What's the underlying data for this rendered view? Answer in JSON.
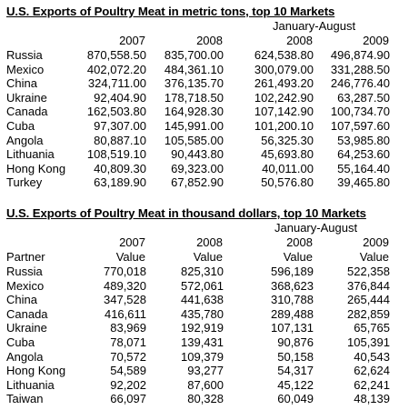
{
  "table1": {
    "title": "U.S. Exports of Poultry Meat in metric tons, top 10 Markets",
    "period_label": "January-August",
    "years": [
      "2007",
      "2008",
      "2008",
      "2009"
    ],
    "rows": [
      {
        "country": "Russia",
        "v": [
          "870,558.50",
          "835,700.00",
          "624,538.80",
          "496,874.90"
        ]
      },
      {
        "country": "Mexico",
        "v": [
          "402,072.20",
          "484,361.10",
          "300,079.00",
          "331,288.50"
        ]
      },
      {
        "country": "China",
        "v": [
          "324,711.00",
          "376,135.70",
          "261,493.20",
          "246,776.40"
        ]
      },
      {
        "country": "Ukraine",
        "v": [
          "92,404.90",
          "178,718.50",
          "102,242.90",
          "63,287.50"
        ]
      },
      {
        "country": "Canada",
        "v": [
          "162,503.80",
          "164,928.30",
          "107,142.90",
          "100,734.70"
        ]
      },
      {
        "country": "Cuba",
        "v": [
          "97,307.00",
          "145,991.00",
          "101,200.10",
          "107,597.60"
        ]
      },
      {
        "country": "Angola",
        "v": [
          "80,887.10",
          "105,585.00",
          "56,325.30",
          "53,985.80"
        ]
      },
      {
        "country": "Lithuania",
        "v": [
          "108,519.10",
          "90,443.80",
          "45,693.80",
          "64,253.60"
        ]
      },
      {
        "country": "Hong Kong",
        "v": [
          "40,809.30",
          "69,323.00",
          "40,011.00",
          "55,164.40"
        ]
      },
      {
        "country": "Turkey",
        "v": [
          "63,189.90",
          "67,852.90",
          "50,576.80",
          "39,465.80"
        ]
      }
    ]
  },
  "table2": {
    "title": "U.S. Exports of Poultry Meat in thousand dollars, top 10 Markets",
    "period_label": "January-August",
    "partner_label": "Partner",
    "years": [
      "2007",
      "2008",
      "2008",
      "2009"
    ],
    "value_label": "Value",
    "rows": [
      {
        "country": "Russia",
        "v": [
          "770,018",
          "825,310",
          "596,189",
          "522,358"
        ]
      },
      {
        "country": "Mexico",
        "v": [
          "489,320",
          "572,061",
          "368,623",
          "376,844"
        ]
      },
      {
        "country": "China",
        "v": [
          "347,528",
          "441,638",
          "310,788",
          "265,444"
        ]
      },
      {
        "country": "Canada",
        "v": [
          "416,611",
          "435,780",
          "289,488",
          "282,859"
        ]
      },
      {
        "country": "Ukraine",
        "v": [
          "83,969",
          "192,919",
          "107,131",
          "65,765"
        ]
      },
      {
        "country": "Cuba",
        "v": [
          "78,071",
          "139,431",
          "90,876",
          "105,391"
        ]
      },
      {
        "country": "Angola",
        "v": [
          "70,572",
          "109,379",
          "50,158",
          "40,543"
        ]
      },
      {
        "country": "Hong Kong",
        "v": [
          "54,589",
          "93,277",
          "54,317",
          "62,624"
        ]
      },
      {
        "country": "Lithuania",
        "v": [
          "92,202",
          "87,600",
          "45,122",
          "62,241"
        ]
      },
      {
        "country": "Taiwan",
        "v": [
          "66,097",
          "80,328",
          "60,049",
          "48,139"
        ]
      }
    ]
  }
}
